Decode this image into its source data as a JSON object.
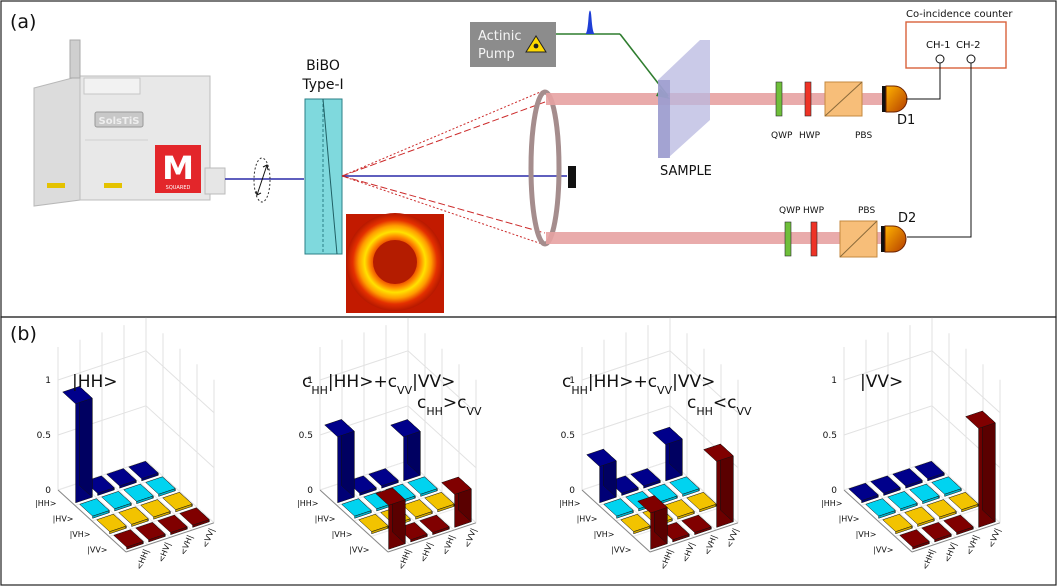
{
  "panel_a": {
    "label": "(a)",
    "laser": {
      "brand_plate": "SolsTiS",
      "logo_letter": "M",
      "logo_word": "SQUARED"
    },
    "crystal": {
      "name": "BiBO",
      "type": "Type-I"
    },
    "pump": {
      "line1": "Actinic",
      "line2": "Pump"
    },
    "sample": "SAMPLE",
    "counter": {
      "title": "Co-incidence counter",
      "ch1": "CH-1",
      "ch2": "CH-2"
    },
    "optics_top": {
      "qwp": "QWP",
      "hwp": "HWP",
      "pbs": "PBS",
      "detector": "D1"
    },
    "optics_bottom": {
      "qwp": "QWP",
      "hwp": "HWP",
      "pbs": "PBS",
      "detector": "D2"
    },
    "colors": {
      "pump_beam": "#2a2aa8",
      "signal_beam": "#e7a2a2",
      "crystal": "#7fd9dd",
      "qwp": "#6fbf3a",
      "hwp": "#ee3326",
      "pbs": "#f7be79",
      "counter_border": "#d9623b",
      "actinic_line": "#2f7d2f"
    }
  },
  "panel_b": {
    "label": "(b)",
    "colors": {
      "HH": "#00008b",
      "HV": "#00d3f0",
      "VH": "#f2c300",
      "VV": "#800000"
    },
    "plots": [
      {
        "title_parts": [
          "|HH>"
        ],
        "subtitle_parts": []
      },
      {
        "title_parts": [
          "c",
          "HH",
          "|HH>+c",
          "VV",
          "|VV>"
        ],
        "subtitle_parts": [
          "c",
          "HH",
          ">c",
          "VV"
        ]
      },
      {
        "title_parts": [
          "c",
          "HH",
          "|HH>+c",
          "VV",
          "|VV>"
        ],
        "subtitle_parts": [
          "c",
          "HH",
          "<c",
          "VV"
        ]
      },
      {
        "title_parts": [
          "|VV>"
        ],
        "subtitle_parts": []
      }
    ],
    "z_ticks": [
      "1",
      "0.5",
      "0"
    ],
    "row_labels": [
      "|HH>",
      "|HV>",
      "|VH>",
      "|VV>"
    ],
    "col_labels": [
      "<HH|",
      "<HV|",
      "<VH|",
      "<VV|"
    ]
  },
  "chart_data": [
    {
      "type": "bar3d",
      "title": "|HH>",
      "rows": [
        "|HH>",
        "|HV>",
        "|VH>",
        "|VV>"
      ],
      "cols": [
        "<HH|",
        "<HV|",
        "<VH|",
        "<VV|"
      ],
      "zlim": [
        0,
        1
      ],
      "values": [
        [
          0.9,
          0,
          0,
          0
        ],
        [
          0,
          0,
          0,
          0
        ],
        [
          0,
          0,
          0,
          0
        ],
        [
          0,
          0,
          0,
          0
        ]
      ]
    },
    {
      "type": "bar3d",
      "title": "cHH|HH>+cVV|VV>  cHH>cVV",
      "rows": [
        "|HH>",
        "|HV>",
        "|VH>",
        "|VV>"
      ],
      "cols": [
        "<HH|",
        "<HV|",
        "<VH|",
        "<VV|"
      ],
      "zlim": [
        0,
        1
      ],
      "values": [
        [
          0.6,
          0,
          0,
          0.4
        ],
        [
          0,
          0,
          0,
          0
        ],
        [
          0,
          0,
          0,
          0
        ],
        [
          0.4,
          0,
          0,
          0.3
        ]
      ]
    },
    {
      "type": "bar3d",
      "title": "cHH|HH>+cVV|VV>  cHH<cVV",
      "rows": [
        "|HH>",
        "|HV>",
        "|VH>",
        "|VV>"
      ],
      "cols": [
        "<HH|",
        "<HV|",
        "<VH|",
        "<VV|"
      ],
      "zlim": [
        0,
        1
      ],
      "values": [
        [
          0.33,
          0,
          0,
          0.33
        ],
        [
          0,
          0,
          0,
          0
        ],
        [
          0,
          0,
          0,
          0
        ],
        [
          0.33,
          0,
          0,
          0.6
        ]
      ]
    },
    {
      "type": "bar3d",
      "title": "|VV>",
      "rows": [
        "|HH>",
        "|HV>",
        "|VH>",
        "|VV>"
      ],
      "cols": [
        "<HH|",
        "<HV|",
        "<VH|",
        "<VV|"
      ],
      "zlim": [
        0,
        1
      ],
      "values": [
        [
          0,
          0,
          0,
          0
        ],
        [
          0,
          0,
          0,
          0
        ],
        [
          0,
          0,
          0,
          0
        ],
        [
          0,
          0,
          0,
          0.9
        ]
      ]
    }
  ]
}
